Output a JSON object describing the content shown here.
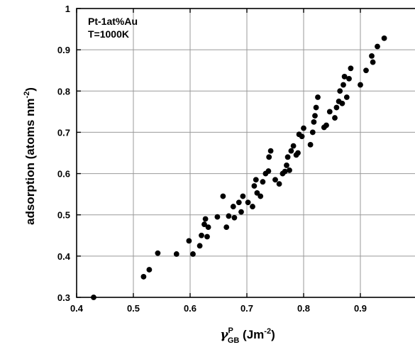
{
  "chart_data": {
    "type": "scatter",
    "annotations": [
      "Pt-1at%Au",
      "T=1000K"
    ],
    "ylabel": "adsorption (atoms nm",
    "ylabel_sup": "-2",
    "ylabel_close": ")",
    "xlabel_symbol": "γ",
    "xlabel_sup": "P",
    "xlabel_sub": "GB",
    "xlabel_unit": " (Jm",
    "xlabel_unit_sup": "-2",
    "xlabel_close": ")",
    "xlim": [
      0.4,
      1.0
    ],
    "ylim": [
      0.3,
      1.0
    ],
    "xticks": [
      0.4,
      0.5,
      0.6,
      0.7,
      0.8,
      0.9
    ],
    "xtick_labels": [
      "0.4",
      "0.5",
      "0.6",
      "0.7",
      "0.8",
      "0.9"
    ],
    "yticks": [
      0.3,
      0.4,
      0.5,
      0.6,
      0.7,
      0.8,
      0.9,
      1.0
    ],
    "ytick_labels": [
      "0.3",
      "0.4",
      "0.5",
      "0.6",
      "0.7",
      "0.8",
      "0.9",
      "1"
    ],
    "grid": true,
    "marker_color": "#000000",
    "series": [
      {
        "points": [
          [
            0.43,
            0.3
          ],
          [
            0.518,
            0.35
          ],
          [
            0.528,
            0.367
          ],
          [
            0.543,
            0.407
          ],
          [
            0.576,
            0.405
          ],
          [
            0.598,
            0.437
          ],
          [
            0.605,
            0.405
          ],
          [
            0.617,
            0.425
          ],
          [
            0.62,
            0.45
          ],
          [
            0.625,
            0.477
          ],
          [
            0.627,
            0.49
          ],
          [
            0.63,
            0.447
          ],
          [
            0.632,
            0.47
          ],
          [
            0.648,
            0.495
          ],
          [
            0.658,
            0.545
          ],
          [
            0.664,
            0.47
          ],
          [
            0.668,
            0.497
          ],
          [
            0.676,
            0.52
          ],
          [
            0.678,
            0.493
          ],
          [
            0.686,
            0.53
          ],
          [
            0.69,
            0.507
          ],
          [
            0.693,
            0.545
          ],
          [
            0.702,
            0.53
          ],
          [
            0.71,
            0.52
          ],
          [
            0.713,
            0.57
          ],
          [
            0.716,
            0.585
          ],
          [
            0.718,
            0.553
          ],
          [
            0.724,
            0.545
          ],
          [
            0.728,
            0.58
          ],
          [
            0.733,
            0.6
          ],
          [
            0.738,
            0.606
          ],
          [
            0.739,
            0.64
          ],
          [
            0.742,
            0.655
          ],
          [
            0.75,
            0.585
          ],
          [
            0.757,
            0.575
          ],
          [
            0.763,
            0.6
          ],
          [
            0.767,
            0.605
          ],
          [
            0.77,
            0.62
          ],
          [
            0.772,
            0.64
          ],
          [
            0.775,
            0.608
          ],
          [
            0.778,
            0.655
          ],
          [
            0.782,
            0.667
          ],
          [
            0.787,
            0.645
          ],
          [
            0.79,
            0.65
          ],
          [
            0.792,
            0.695
          ],
          [
            0.797,
            0.69
          ],
          [
            0.8,
            0.71
          ],
          [
            0.812,
            0.67
          ],
          [
            0.816,
            0.7
          ],
          [
            0.818,
            0.725
          ],
          [
            0.82,
            0.74
          ],
          [
            0.822,
            0.76
          ],
          [
            0.825,
            0.785
          ],
          [
            0.836,
            0.712
          ],
          [
            0.84,
            0.717
          ],
          [
            0.846,
            0.75
          ],
          [
            0.855,
            0.735
          ],
          [
            0.858,
            0.76
          ],
          [
            0.862,
            0.775
          ],
          [
            0.864,
            0.8
          ],
          [
            0.868,
            0.77
          ],
          [
            0.87,
            0.815
          ],
          [
            0.872,
            0.835
          ],
          [
            0.876,
            0.785
          ],
          [
            0.88,
            0.83
          ],
          [
            0.883,
            0.855
          ],
          [
            0.9,
            0.815
          ],
          [
            0.91,
            0.85
          ],
          [
            0.92,
            0.885
          ],
          [
            0.922,
            0.87
          ],
          [
            0.93,
            0.908
          ],
          [
            0.942,
            0.928
          ]
        ]
      }
    ]
  }
}
